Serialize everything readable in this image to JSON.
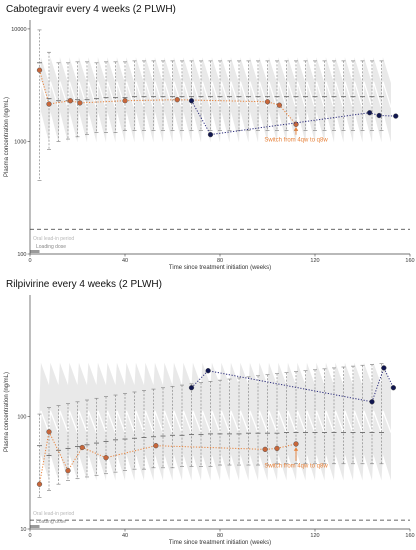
{
  "chart_data": [
    {
      "type": "scatter",
      "title": "Cabotegravir every 4 weeks (2 PLWH)",
      "xlabel": "Time since treatment initiation (weeks)",
      "ylabel": "Plasma concentration (ng/mL)",
      "xlim": [
        0,
        160
      ],
      "ylim": [
        100,
        12000
      ],
      "y_scale": "log",
      "x_ticks": [
        0,
        40,
        80,
        120,
        160
      ],
      "x_tick_labels": [
        "0",
        "40",
        "80",
        "120",
        "160"
      ],
      "y_ticks": [
        100,
        1000,
        10000
      ],
      "y_tick_labels": [
        "100",
        "1000",
        "10000"
      ],
      "threshold": 166,
      "oral_lead_in_label": "Oral lead-in period",
      "loading_dose_label": "Loading dose",
      "annotation": {
        "text": "Switch from 4qw to q8w",
        "x": 112,
        "y": 1410,
        "text_y": 1080
      },
      "simulated_band": {
        "dose_times": [
          4,
          8,
          12,
          16,
          20,
          24,
          28,
          32,
          36,
          40,
          44,
          48,
          52,
          56,
          60,
          64,
          68,
          72,
          76,
          80,
          84,
          88,
          92,
          96,
          100,
          104,
          108,
          112,
          116,
          120,
          124,
          128,
          132,
          136,
          140,
          144,
          148
        ],
        "median_peak": 3400,
        "median_trough": 2000,
        "upper_peak": 5600,
        "upper_trough": 3300,
        "lower_peak": 1850,
        "lower_trough": 980
      },
      "observed_intervals": [
        {
          "x": 4,
          "median": 5000,
          "low": 450,
          "high": 9800
        },
        {
          "x": 8,
          "median": 2400,
          "low": 850,
          "high": 6200
        },
        {
          "x": 12,
          "median": 2300,
          "low": 1000,
          "high": 5000
        },
        {
          "x": 16,
          "median": 2300,
          "low": 1050,
          "high": 5000
        },
        {
          "x": 20,
          "median": 2350,
          "low": 1100,
          "high": 5100
        },
        {
          "x": 24,
          "median": 2350,
          "low": 1150,
          "high": 5100
        },
        {
          "x": 28,
          "median": 2400,
          "low": 1200,
          "high": 5000
        },
        {
          "x": 32,
          "median": 2450,
          "low": 1200,
          "high": 5100
        },
        {
          "x": 36,
          "median": 2450,
          "low": 1200,
          "high": 5100
        },
        {
          "x": 40,
          "median": 2450,
          "low": 1250,
          "high": 5100
        },
        {
          "x": 44,
          "median": 2500,
          "low": 1250,
          "high": 5200
        },
        {
          "x": 48,
          "median": 2500,
          "low": 1250,
          "high": 5200
        },
        {
          "x": 52,
          "median": 2500,
          "low": 1250,
          "high": 5200
        },
        {
          "x": 56,
          "median": 2500,
          "low": 1250,
          "high": 5200
        },
        {
          "x": 60,
          "median": 2500,
          "low": 1250,
          "high": 5200
        },
        {
          "x": 64,
          "median": 2500,
          "low": 1250,
          "high": 5200
        },
        {
          "x": 68,
          "median": 2500,
          "low": 1250,
          "high": 5200
        },
        {
          "x": 72,
          "median": 2500,
          "low": 1250,
          "high": 5200
        },
        {
          "x": 76,
          "median": 2500,
          "low": 1250,
          "high": 5200
        },
        {
          "x": 80,
          "median": 2500,
          "low": 1250,
          "high": 5200
        },
        {
          "x": 84,
          "median": 2500,
          "low": 1250,
          "high": 5200
        },
        {
          "x": 88,
          "median": 2500,
          "low": 1250,
          "high": 5200
        },
        {
          "x": 92,
          "median": 2500,
          "low": 1250,
          "high": 5200
        },
        {
          "x": 96,
          "median": 2500,
          "low": 1250,
          "high": 5200
        },
        {
          "x": 100,
          "median": 2500,
          "low": 1250,
          "high": 5200
        },
        {
          "x": 104,
          "median": 2500,
          "low": 1250,
          "high": 5200
        },
        {
          "x": 108,
          "median": 2500,
          "low": 1250,
          "high": 5200
        },
        {
          "x": 112,
          "median": 2500,
          "low": 1250,
          "high": 5200
        },
        {
          "x": 116,
          "median": 2500,
          "low": 1250,
          "high": 5200
        },
        {
          "x": 120,
          "median": 2500,
          "low": 1250,
          "high": 5200
        },
        {
          "x": 124,
          "median": 2500,
          "low": 1250,
          "high": 5200
        },
        {
          "x": 128,
          "median": 2500,
          "low": 1250,
          "high": 5200
        },
        {
          "x": 132,
          "median": 2500,
          "low": 1250,
          "high": 5200
        },
        {
          "x": 136,
          "median": 2500,
          "low": 1250,
          "high": 5200
        },
        {
          "x": 140,
          "median": 2500,
          "low": 1250,
          "high": 5200
        },
        {
          "x": 144,
          "median": 2500,
          "low": 1250,
          "high": 5200
        },
        {
          "x": 148,
          "median": 2500,
          "low": 1250,
          "high": 5200
        }
      ],
      "series": [
        {
          "color": "#e8823a",
          "marker_fill": "#c8663a",
          "line_style": "dotted",
          "points": [
            {
              "x": 4,
              "y": 4300
            },
            {
              "x": 8,
              "y": 2150
            },
            {
              "x": 17,
              "y": 2300
            },
            {
              "x": 21,
              "y": 2200
            },
            {
              "x": 40,
              "y": 2300
            },
            {
              "x": 62,
              "y": 2350
            },
            {
              "x": 100,
              "y": 2250
            },
            {
              "x": 105,
              "y": 2100
            },
            {
              "x": 112,
              "y": 1420
            }
          ]
        },
        {
          "color": "#2a2a7a",
          "marker_fill": "#101650",
          "line_style": "dotted",
          "points": [
            {
              "x": 68,
              "y": 2300
            },
            {
              "x": 76,
              "y": 1150
            },
            {
              "x": 143,
              "y": 1800
            },
            {
              "x": 147,
              "y": 1700
            },
            {
              "x": 154,
              "y": 1680
            }
          ]
        }
      ]
    },
    {
      "type": "scatter",
      "title": "Rilpivirine every 4 weeks (2 PLWH)",
      "xlabel": "Time since treatment initiation (weeks)",
      "ylabel": "Plasma concentration (ng/mL)",
      "xlim": [
        0,
        160
      ],
      "ylim": [
        10,
        1200
      ],
      "y_scale": "log",
      "x_ticks": [
        0,
        40,
        80,
        120,
        160
      ],
      "x_tick_labels": [
        "0",
        "40",
        "80",
        "120",
        "160"
      ],
      "y_ticks": [
        10,
        100
      ],
      "y_tick_labels": [
        "10",
        "100"
      ],
      "threshold": 12,
      "oral_lead_in_label": "Oral lead-in period",
      "loading_dose_label": "Loading dose",
      "annotation": {
        "text": "Switch from 4qw to q8w",
        "x": 112,
        "y": 56,
        "text_y": 38
      },
      "simulated_band": {
        "dose_times": [
          4,
          8,
          12,
          16,
          20,
          24,
          28,
          32,
          36,
          40,
          44,
          48,
          52,
          56,
          60,
          64,
          68,
          72,
          76,
          80,
          84,
          88,
          92,
          96,
          100,
          104,
          108,
          112,
          116,
          120,
          124,
          128,
          132,
          136,
          140,
          144,
          148
        ],
        "median_peak": 112,
        "median_trough": 72,
        "upper_peak": 300,
        "upper_trough": 190,
        "lower_peak": 46,
        "lower_trough": 27
      },
      "observed_intervals": [
        {
          "x": 4,
          "median": 55,
          "low": 19,
          "high": 105
        },
        {
          "x": 8,
          "median": 45,
          "low": 22,
          "high": 120
        },
        {
          "x": 12,
          "median": 50,
          "low": 25,
          "high": 125
        },
        {
          "x": 16,
          "median": 52,
          "low": 27,
          "high": 130
        },
        {
          "x": 20,
          "median": 54,
          "low": 28,
          "high": 135
        },
        {
          "x": 24,
          "median": 56,
          "low": 29,
          "high": 140
        },
        {
          "x": 28,
          "median": 58,
          "low": 30,
          "high": 145
        },
        {
          "x": 32,
          "median": 60,
          "low": 31,
          "high": 150
        },
        {
          "x": 36,
          "median": 62,
          "low": 32,
          "high": 155
        },
        {
          "x": 40,
          "median": 63,
          "low": 33,
          "high": 160
        },
        {
          "x": 44,
          "median": 64,
          "low": 34,
          "high": 165
        },
        {
          "x": 48,
          "median": 65,
          "low": 34,
          "high": 170
        },
        {
          "x": 52,
          "median": 66,
          "low": 35,
          "high": 175
        },
        {
          "x": 56,
          "median": 67,
          "low": 35,
          "high": 180
        },
        {
          "x": 60,
          "median": 68,
          "low": 35,
          "high": 185
        },
        {
          "x": 64,
          "median": 68,
          "low": 36,
          "high": 190
        },
        {
          "x": 68,
          "median": 69,
          "low": 36,
          "high": 195
        },
        {
          "x": 72,
          "median": 69,
          "low": 36,
          "high": 200
        },
        {
          "x": 76,
          "median": 70,
          "low": 36,
          "high": 205
        },
        {
          "x": 80,
          "median": 70,
          "low": 37,
          "high": 210
        },
        {
          "x": 84,
          "median": 70,
          "low": 37,
          "high": 215
        },
        {
          "x": 88,
          "median": 70,
          "low": 37,
          "high": 220
        },
        {
          "x": 92,
          "median": 71,
          "low": 37,
          "high": 225
        },
        {
          "x": 96,
          "median": 71,
          "low": 37,
          "high": 230
        },
        {
          "x": 100,
          "median": 71,
          "low": 37,
          "high": 235
        },
        {
          "x": 104,
          "median": 71,
          "low": 38,
          "high": 240
        },
        {
          "x": 108,
          "median": 72,
          "low": 38,
          "high": 245
        },
        {
          "x": 112,
          "median": 72,
          "low": 38,
          "high": 250
        },
        {
          "x": 116,
          "median": 72,
          "low": 38,
          "high": 255
        },
        {
          "x": 120,
          "median": 72,
          "low": 38,
          "high": 260
        },
        {
          "x": 124,
          "median": 72,
          "low": 38,
          "high": 265
        },
        {
          "x": 128,
          "median": 72,
          "low": 38,
          "high": 270
        },
        {
          "x": 132,
          "median": 72,
          "low": 38,
          "high": 275
        },
        {
          "x": 136,
          "median": 72,
          "low": 38,
          "high": 280
        },
        {
          "x": 140,
          "median": 72,
          "low": 38,
          "high": 285
        },
        {
          "x": 144,
          "median": 72,
          "low": 38,
          "high": 290
        },
        {
          "x": 148,
          "median": 72,
          "low": 38,
          "high": 295
        }
      ],
      "series": [
        {
          "color": "#e8823a",
          "marker_fill": "#c8663a",
          "line_style": "dotted",
          "points": [
            {
              "x": 4,
              "y": 25
            },
            {
              "x": 8,
              "y": 73
            },
            {
              "x": 16,
              "y": 33
            },
            {
              "x": 22,
              "y": 53
            },
            {
              "x": 32,
              "y": 43
            },
            {
              "x": 53,
              "y": 55
            },
            {
              "x": 99,
              "y": 51
            },
            {
              "x": 104,
              "y": 52
            },
            {
              "x": 112,
              "y": 57
            }
          ]
        },
        {
          "color": "#2a2a7a",
          "marker_fill": "#101650",
          "line_style": "dotted",
          "points": [
            {
              "x": 68,
              "y": 180
            },
            {
              "x": 75,
              "y": 255
            },
            {
              "x": 144,
              "y": 135
            },
            {
              "x": 149,
              "y": 270
            },
            {
              "x": 153,
              "y": 180
            }
          ]
        }
      ]
    }
  ]
}
